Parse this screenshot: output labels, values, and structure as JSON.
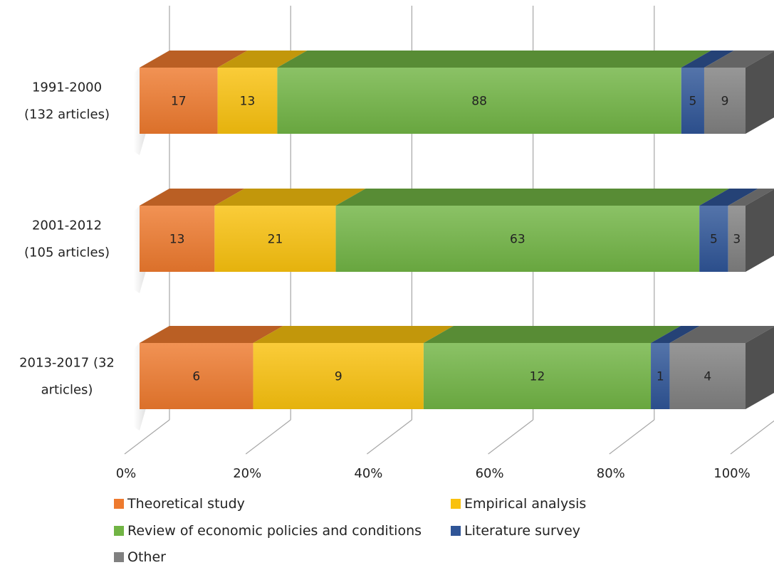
{
  "chart_data": {
    "type": "bar",
    "orientation": "horizontal",
    "stacked": "100%",
    "style": "3d",
    "categories": [
      [
        "1991-2000",
        "(132 articles)"
      ],
      [
        "2001-2012",
        "(105 articles)"
      ],
      [
        "2013-2017 (32",
        "articles)"
      ]
    ],
    "series": [
      {
        "name": "Theoretical study",
        "color": "#EE7A2E",
        "values": [
          17,
          13,
          6
        ]
      },
      {
        "name": "Empirical analysis",
        "color": "#F9C10E",
        "values": [
          13,
          21,
          9
        ]
      },
      {
        "name": "Review of economic policies and conditions",
        "color": "#71B444",
        "values": [
          88,
          63,
          12
        ]
      },
      {
        "name": "Literature survey",
        "color": "#2F5597",
        "values": [
          5,
          5,
          1
        ]
      },
      {
        "name": "Other",
        "color": "#808080",
        "values": [
          9,
          3,
          4
        ]
      }
    ],
    "xticks": [
      "0%",
      "20%",
      "40%",
      "60%",
      "80%",
      "100%"
    ],
    "xlim": [
      0,
      100
    ],
    "grid": true,
    "legend_position": "bottom"
  }
}
